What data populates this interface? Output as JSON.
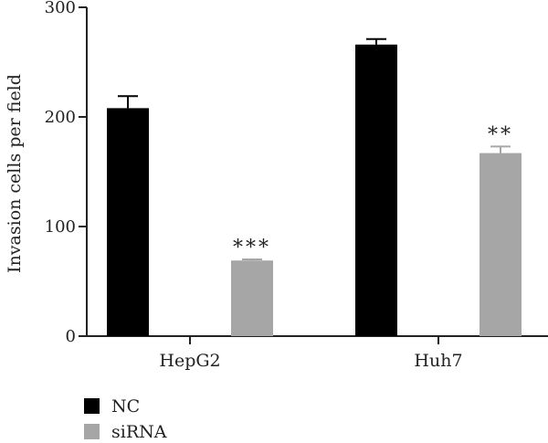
{
  "chart_data": {
    "type": "bar",
    "title": "",
    "xlabel": "",
    "ylabel": "Invasion cells per field",
    "ylim": [
      0,
      300
    ],
    "yticks": [
      0,
      100,
      200,
      300
    ],
    "grid": false,
    "legend_position": "bottom-left",
    "categories": [
      "HepG2",
      "Huh7"
    ],
    "series": [
      {
        "name": "NC",
        "color": "#000000",
        "values": [
          208,
          266
        ],
        "errors": [
          11,
          5
        ]
      },
      {
        "name": "siRNA",
        "color": "#a6a6a6",
        "values": [
          69,
          167
        ],
        "errors": [
          1,
          6
        ]
      }
    ],
    "annotations": [
      {
        "series": 1,
        "category": 0,
        "text": "***"
      },
      {
        "series": 1,
        "category": 1,
        "text": "**"
      }
    ]
  }
}
